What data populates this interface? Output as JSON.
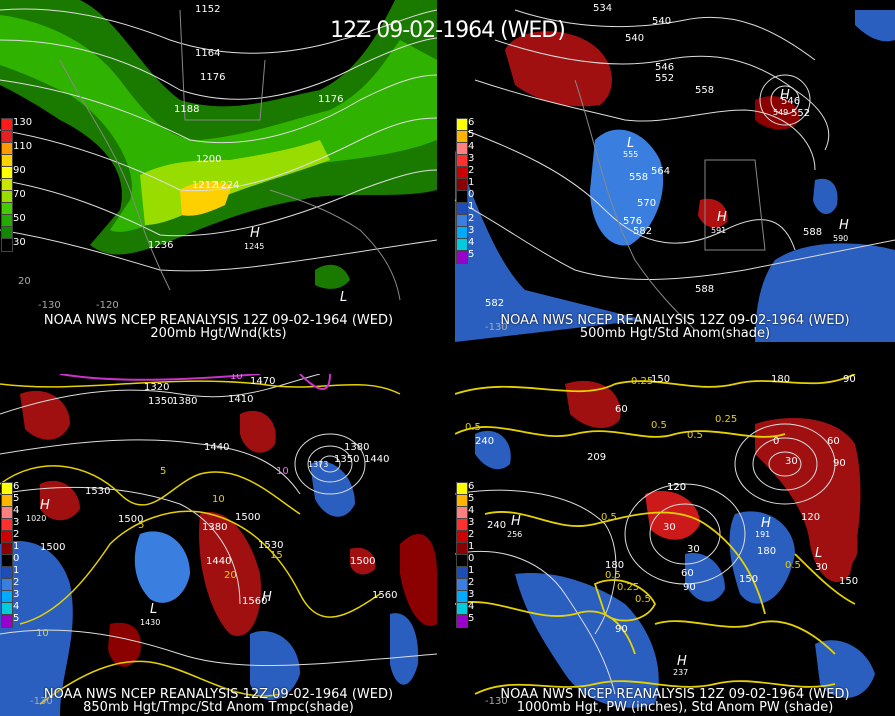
{
  "title": "12Z 09-02-1964 (WED)",
  "panels": {
    "p1": {
      "caption1": "NOAA NWS NCEP REANALYSIS 12Z 09-02-1964 (WED)",
      "caption2": "200mb Hgt/Wnd(kts)",
      "legend": [
        {
          "label": "130",
          "color": "#ff1a1a"
        },
        {
          "label": "",
          "color": "#e62020"
        },
        {
          "label": "110",
          "color": "#ff9900"
        },
        {
          "label": "",
          "color": "#ffd000"
        },
        {
          "label": "90",
          "color": "#ffff00"
        },
        {
          "label": "",
          "color": "#c8e600"
        },
        {
          "label": "70",
          "color": "#99dd00"
        },
        {
          "label": "",
          "color": "#44cc00"
        },
        {
          "label": "50",
          "color": "#22aa00"
        },
        {
          "label": "",
          "color": "#118800"
        },
        {
          "label": "30",
          "color": "#000000"
        }
      ],
      "contours": [
        "1152",
        "1164",
        "1176",
        "1176",
        "1188",
        "1200",
        "1212",
        "1224",
        "1236",
        "1245"
      ],
      "axis": [
        "-130",
        "-120",
        "20"
      ]
    },
    "p2": {
      "caption1": "NOAA NWS NCEP REANALYSIS 12Z 09-02-1964 (WED)",
      "caption2": "500mb Hgt/Std Anom(shade)",
      "legend": [
        {
          "label": "6",
          "color": "#ffff00"
        },
        {
          "label": "5",
          "color": "#ffb400"
        },
        {
          "label": "4",
          "color": "#ff8080"
        },
        {
          "label": "3",
          "color": "#ff3030"
        },
        {
          "label": "2",
          "color": "#cc0000"
        },
        {
          "label": "1",
          "color": "#8b0000"
        },
        {
          "label": "0",
          "color": "#000000"
        },
        {
          "label": "1",
          "color": "#1e4db7"
        },
        {
          "label": "2",
          "color": "#3a7fe0"
        },
        {
          "label": "3",
          "color": "#00aaff"
        },
        {
          "label": "4",
          "color": "#00ccdd"
        },
        {
          "label": "5",
          "color": "#9900cc"
        }
      ],
      "contours": [
        "534",
        "540",
        "540",
        "546",
        "552",
        "558",
        "546",
        "549",
        "552",
        "555",
        "558",
        "564",
        "570",
        "576",
        "582",
        "591",
        "588",
        "590",
        "582",
        "588"
      ],
      "axis": [
        "-130"
      ]
    },
    "p3": {
      "caption1": "NOAA NWS NCEP REANALYSIS 12Z 09-02-1964 (WED)",
      "caption2": "850mb Hgt/Tmpc/Std Anom Tmpc(shade)",
      "legend": [
        {
          "label": "6",
          "color": "#ffff00"
        },
        {
          "label": "5",
          "color": "#ffb400"
        },
        {
          "label": "4",
          "color": "#ff8080"
        },
        {
          "label": "3",
          "color": "#ff3030"
        },
        {
          "label": "2",
          "color": "#cc0000"
        },
        {
          "label": "1",
          "color": "#8b0000"
        },
        {
          "label": "0",
          "color": "#000000"
        },
        {
          "label": "1",
          "color": "#1e4db7"
        },
        {
          "label": "2",
          "color": "#3a7fe0"
        },
        {
          "label": "3",
          "color": "#00aaff"
        },
        {
          "label": "4",
          "color": "#00ccdd"
        },
        {
          "label": "5",
          "color": "#9900cc"
        }
      ],
      "contours": [
        "1320",
        "1350",
        "1380",
        "1410",
        "1470",
        "1440",
        "1380",
        "1350",
        "1440",
        "1530",
        "1500",
        "1500",
        "1380",
        "1440",
        "1530",
        "1500",
        "1560",
        "1560",
        "1500",
        "1020",
        "1430",
        "1373",
        "10",
        "10",
        "10",
        "5",
        "5",
        "15",
        "20",
        "10"
      ],
      "axis": [
        "-130"
      ]
    },
    "p4": {
      "caption1": "NOAA NWS NCEP REANALYSIS 12Z 09-02-1964 (WED)",
      "caption2": "1000mb Hgt, PW (inches), Std Anom PW (shade)",
      "legend": [
        {
          "label": "6",
          "color": "#ffff00"
        },
        {
          "label": "5",
          "color": "#ffb400"
        },
        {
          "label": "4",
          "color": "#ff8080"
        },
        {
          "label": "3",
          "color": "#ff3030"
        },
        {
          "label": "2",
          "color": "#cc0000"
        },
        {
          "label": "1",
          "color": "#8b0000"
        },
        {
          "label": "0",
          "color": "#000000"
        },
        {
          "label": "1",
          "color": "#1e4db7"
        },
        {
          "label": "2",
          "color": "#3a7fe0"
        },
        {
          "label": "3",
          "color": "#00aaff"
        },
        {
          "label": "4",
          "color": "#00ccdd"
        },
        {
          "label": "5",
          "color": "#9900cc"
        }
      ],
      "contours": [
        "0.25",
        "150",
        "180",
        "90",
        "0.5",
        "60",
        "240",
        "0.5",
        "209",
        "0.5",
        "0.25",
        "120",
        "0",
        "60",
        "30",
        "90",
        "240",
        "256",
        "120",
        "0.5",
        "30",
        "30",
        "180",
        "191",
        "120",
        "0.5",
        "0.25",
        "180",
        "60",
        "150",
        "0.5",
        "90",
        "90",
        "150",
        "30",
        "0.5",
        "237"
      ],
      "axis": [
        "-130"
      ]
    }
  }
}
